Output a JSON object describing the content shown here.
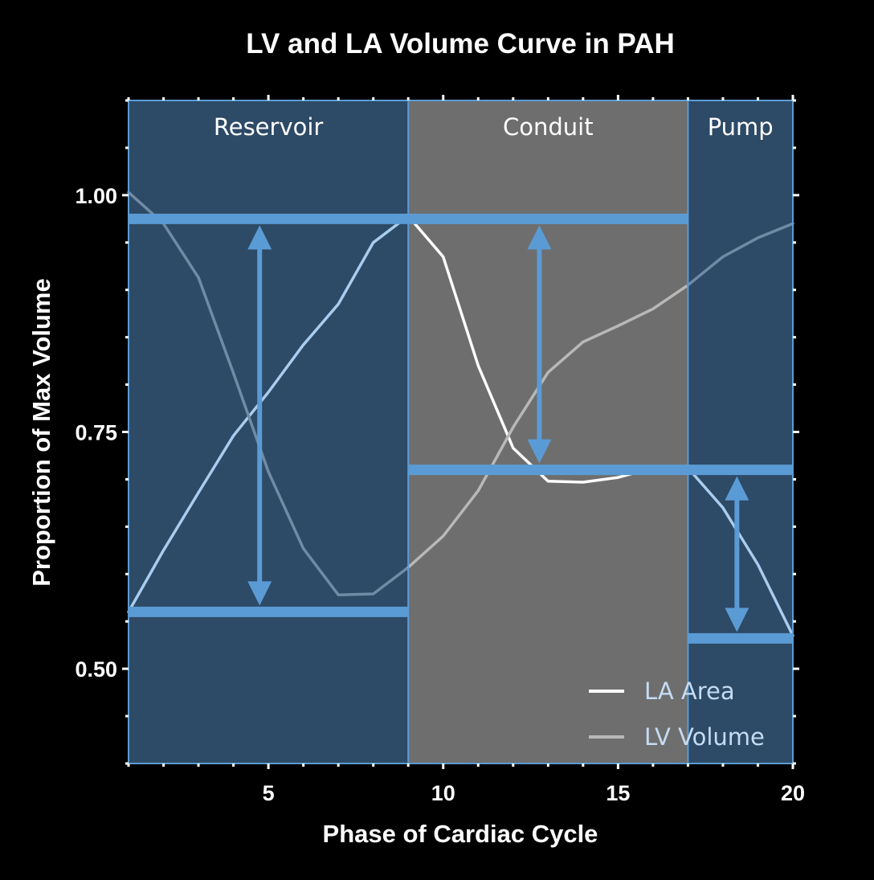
{
  "chart_data": {
    "type": "line",
    "title": "LV and LA Volume Curve in PAH",
    "xlabel": "Phase of Cardiac Cycle",
    "ylabel": "Proportion of Max Volume",
    "xlim": [
      1,
      20
    ],
    "ylim": [
      0.4,
      1.1
    ],
    "x_ticks": [
      5,
      10,
      15,
      20
    ],
    "x_tick_labels": [
      "5",
      "10",
      "15",
      "20"
    ],
    "y_ticks": [
      0.5,
      0.75,
      1.0
    ],
    "y_tick_labels": [
      "0.50",
      "0.75",
      "1.00"
    ],
    "grid": false,
    "legend_position": "bottom-right",
    "phases": [
      {
        "name": "Reservoir",
        "start": 1,
        "end": 9,
        "color": "#2d4a66"
      },
      {
        "name": "Conduit",
        "start": 9,
        "end": 17,
        "color": "#6e6e6e"
      },
      {
        "name": "Pump",
        "start": 17,
        "end": 20,
        "color": "#2d4a66"
      }
    ],
    "series": [
      {
        "name": "LA Area",
        "color": "#ffffff",
        "x": [
          1,
          2,
          3,
          4,
          5,
          6,
          7,
          8,
          9,
          10,
          11,
          12,
          13,
          14,
          15,
          16,
          17,
          18,
          19,
          20
        ],
        "values": [
          0.56,
          0.625,
          0.686,
          0.746,
          0.792,
          0.842,
          0.885,
          0.95,
          0.978,
          0.935,
          0.82,
          0.733,
          0.698,
          0.697,
          0.702,
          0.712,
          0.712,
          0.67,
          0.61,
          0.535
        ],
        "segment_colors": [
          {
            "from": 1,
            "to": 9,
            "color": "#a9cdee"
          },
          {
            "from": 9,
            "to": 17,
            "color": "#ffffff"
          },
          {
            "from": 17,
            "to": 20,
            "color": "#a9cdee"
          }
        ]
      },
      {
        "name": "LV Volume",
        "color": "#b8b8b8",
        "x": [
          1,
          2,
          3,
          4,
          5,
          6,
          7,
          8,
          9,
          10,
          11,
          12,
          13,
          14,
          15,
          16,
          17,
          18,
          19,
          20
        ],
        "values": [
          1.003,
          0.97,
          0.913,
          0.812,
          0.708,
          0.627,
          0.578,
          0.579,
          0.607,
          0.64,
          0.688,
          0.755,
          0.813,
          0.845,
          0.862,
          0.88,
          0.905,
          0.935,
          0.955,
          0.97
        ],
        "segment_colors": [
          {
            "from": 1,
            "to": 9,
            "color": "#6f8ba6"
          },
          {
            "from": 9,
            "to": 17,
            "color": "#b8b8b8"
          },
          {
            "from": 17,
            "to": 20,
            "color": "#6f8ba6"
          }
        ]
      }
    ],
    "level_lines": [
      {
        "from_x": 1,
        "to_x": 17,
        "y": 0.975
      },
      {
        "from_x": 1,
        "to_x": 9,
        "y": 0.56
      },
      {
        "from_x": 9,
        "to_x": 20,
        "y": 0.71
      },
      {
        "from_x": 17,
        "to_x": 20,
        "y": 0.532
      }
    ],
    "double_arrows": [
      {
        "x": 4.75,
        "y_top": 0.975,
        "y_bottom": 0.56
      },
      {
        "x": 12.75,
        "y_top": 0.975,
        "y_bottom": 0.71
      },
      {
        "x": 18.4,
        "y_top": 0.71,
        "y_bottom": 0.532
      }
    ],
    "accent_color": "#5b9bd5"
  }
}
